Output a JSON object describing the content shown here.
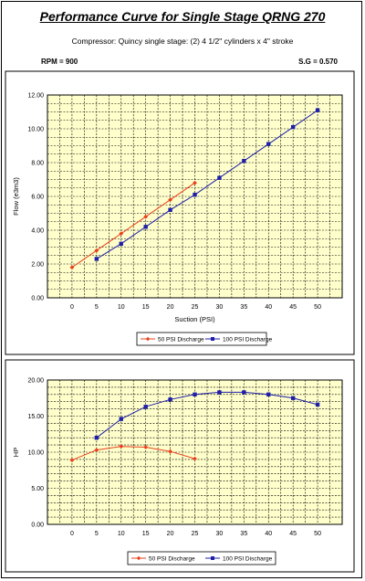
{
  "header": {
    "title": "Performance Curve for Single Stage QRNG 270",
    "subtitle": "Compressor: Quincy single stage: (2) 4 1/2\" cylinders x 4\" stroke",
    "rpm": "RPM = 900",
    "sg": "S.G = 0.570"
  },
  "colors": {
    "plot_bg": "#FFFFCC",
    "series_50": "#E8401C",
    "series_100": "#1F1FA8"
  },
  "chart_data": [
    {
      "type": "line",
      "title": "",
      "xlabel": "Suction (PSI)",
      "ylabel": "Flow (e3m3)",
      "xlim": [
        -5,
        55
      ],
      "ylim": [
        0,
        12
      ],
      "x_ticks": [
        "0",
        "5",
        "10",
        "15",
        "20",
        "25",
        "30",
        "35",
        "40",
        "45",
        "50"
      ],
      "y_ticks": [
        "0.00",
        "2.00",
        "4.00",
        "6.00",
        "8.00",
        "10.00",
        "12.00"
      ],
      "grid": true,
      "legend_position": "bottom",
      "series": [
        {
          "name": "50 PSI Discharge",
          "x": [
            0,
            5,
            10,
            15,
            20,
            25
          ],
          "values": [
            1.8,
            2.8,
            3.8,
            4.8,
            5.8,
            6.8
          ]
        },
        {
          "name": "100 PSI Discharge",
          "x": [
            5,
            10,
            15,
            20,
            25,
            30,
            35,
            40,
            45,
            50
          ],
          "values": [
            2.3,
            3.2,
            4.2,
            5.2,
            6.1,
            7.1,
            8.1,
            9.1,
            10.1,
            11.1
          ]
        }
      ]
    },
    {
      "type": "line",
      "title": "",
      "xlabel": "",
      "ylabel": "HP",
      "xlim": [
        -5,
        55
      ],
      "ylim": [
        0,
        20
      ],
      "x_ticks": [
        "0",
        "5",
        "10",
        "15",
        "20",
        "25",
        "30",
        "35",
        "40",
        "45",
        "50"
      ],
      "y_ticks": [
        "0.00",
        "5.00",
        "10.00",
        "15.00",
        "20.00"
      ],
      "grid": true,
      "legend_position": "bottom",
      "series": [
        {
          "name": "50 PSI Discharge",
          "x": [
            0,
            5,
            10,
            15,
            20,
            25
          ],
          "values": [
            8.9,
            10.3,
            10.8,
            10.7,
            10.1,
            9.1
          ]
        },
        {
          "name": "100 PSI Discharge",
          "x": [
            5,
            10,
            15,
            20,
            25,
            30,
            35,
            40,
            45,
            50
          ],
          "values": [
            12.0,
            14.6,
            16.3,
            17.3,
            18.0,
            18.3,
            18.3,
            18.0,
            17.5,
            16.6
          ]
        }
      ]
    }
  ]
}
